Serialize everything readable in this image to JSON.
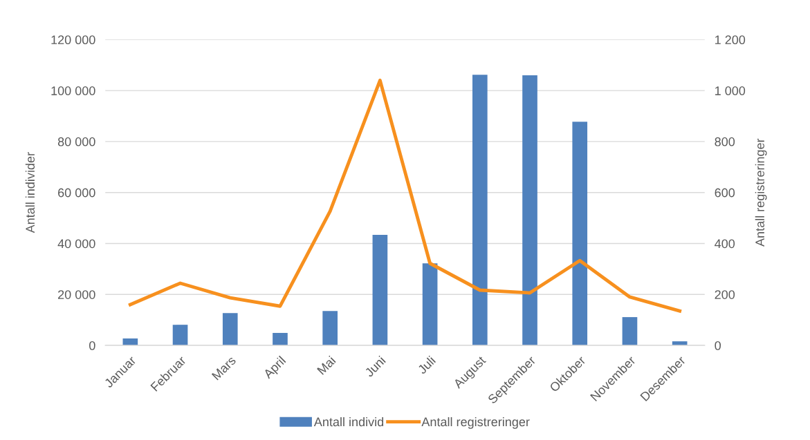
{
  "chart_data": {
    "type": "bar",
    "categories": [
      "Januar",
      "Februar",
      "Mars",
      "April",
      "Mai",
      "Juni",
      "Juli",
      "August",
      "September",
      "Oktober",
      "November",
      "Desember"
    ],
    "series": [
      {
        "name": "Antall individ",
        "color": "#4f81bd",
        "values": [
          2700,
          8100,
          12700,
          4900,
          13500,
          43400,
          32200,
          106200,
          106000,
          87800,
          11100,
          1600
        ]
      },
      {
        "name": "Antall registreringer",
        "type": "line",
        "axis": "y2",
        "color": "#f7901e",
        "values": [
          160,
          244,
          187,
          154,
          526,
          1040,
          322,
          217,
          206,
          333,
          190,
          135
        ]
      }
    ],
    "ylabel": "Antall individer",
    "y2label": "Antall registreringer",
    "ylim": [
      0,
      120000
    ],
    "yticks": [
      0,
      {
        "value": 20000,
        "label": "20 000"
      },
      {
        "value": 40000,
        "label": "40 000"
      },
      {
        "value": 60000,
        "label": "60 000"
      },
      {
        "value": 80000,
        "label": "80 000"
      },
      {
        "value": 100000,
        "label": "100 000"
      },
      {
        "value": 120000,
        "label": "120 000"
      }
    ],
    "y2lim": [
      0,
      1200
    ],
    "y2ticks": [
      0,
      200,
      400,
      600,
      800,
      {
        "value": 1000,
        "label": "1 000"
      },
      {
        "value": 1200,
        "label": "1 200"
      }
    ],
    "grid": "y",
    "legend": "bottom",
    "marker": "none",
    "line_style": "solid"
  }
}
